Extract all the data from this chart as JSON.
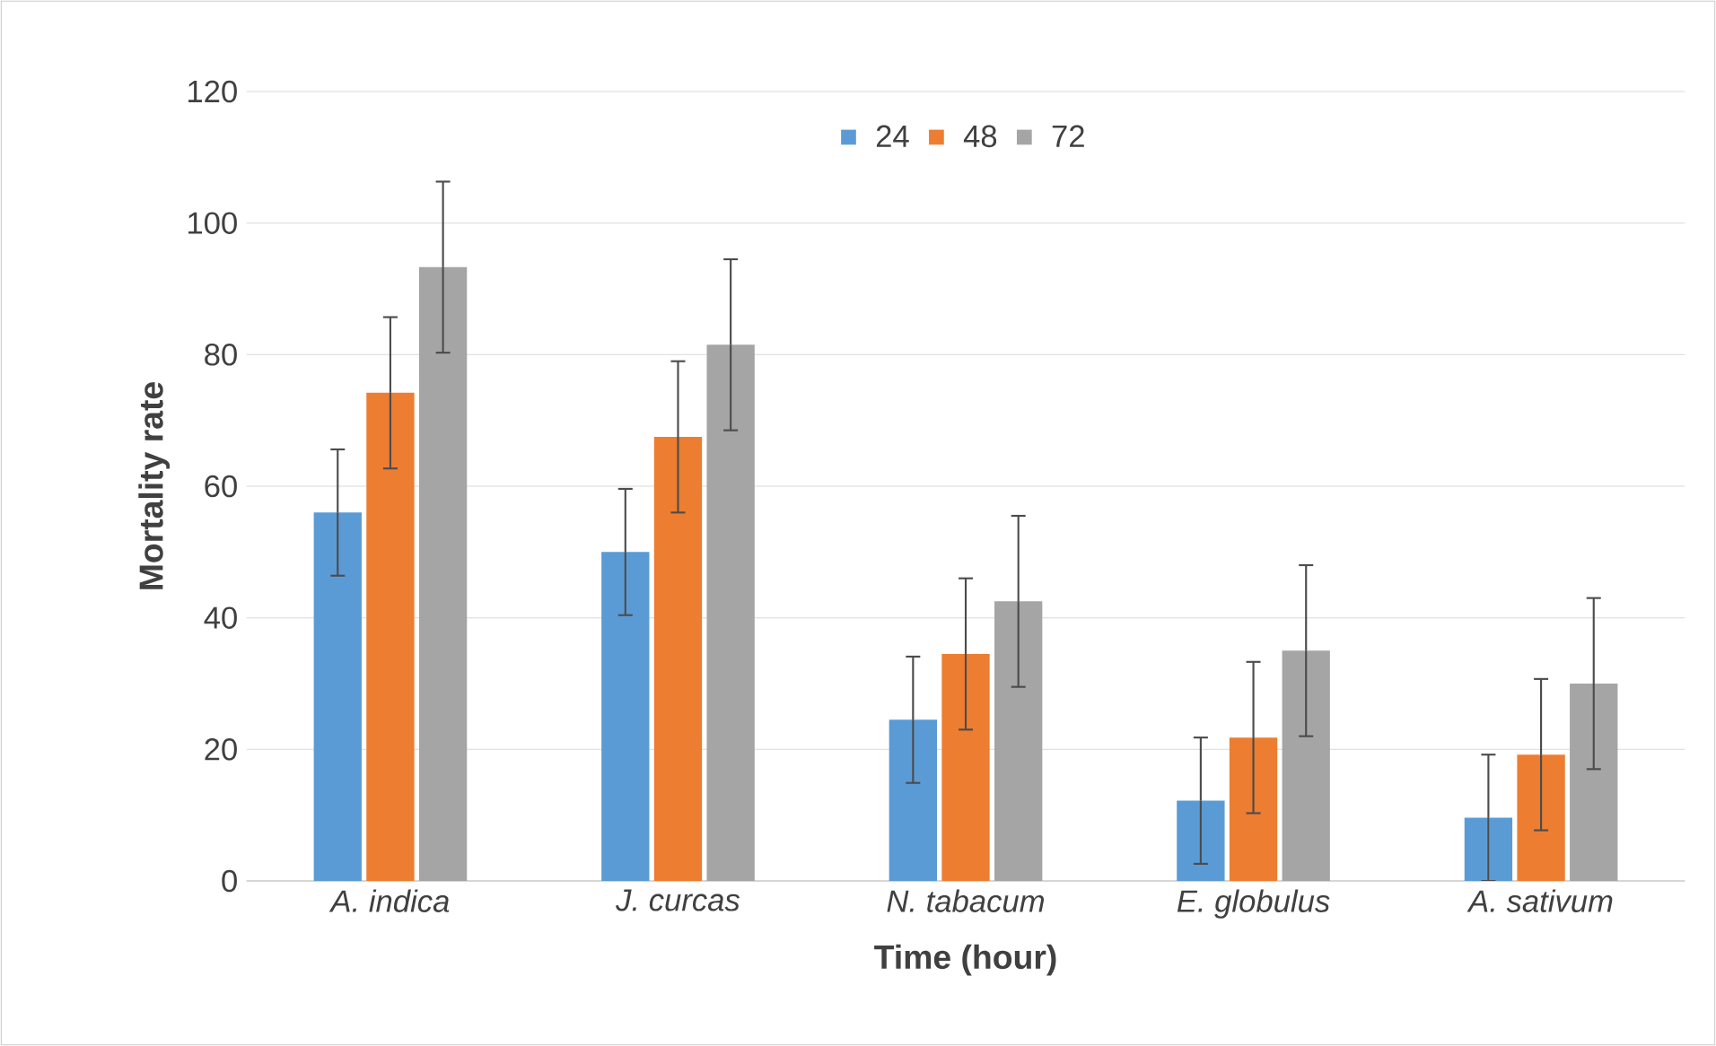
{
  "chart_data": {
    "type": "bar",
    "xlabel": "Time (hour)",
    "ylabel": "Mortality rate",
    "categories": [
      "A. indica",
      "J. curcas",
      "N. tabacum",
      "E. globulus",
      "A. sativum"
    ],
    "series": [
      {
        "name": "24",
        "color": "#5b9bd5",
        "values": [
          56,
          50,
          24.5,
          12.2,
          9.6
        ],
        "errors": [
          9.6,
          9.6,
          9.6,
          9.6,
          9.6
        ]
      },
      {
        "name": "48",
        "color": "#ed7d31",
        "values": [
          74.2,
          67.5,
          34.5,
          21.8,
          19.2
        ],
        "errors": [
          11.5,
          11.5,
          11.5,
          11.5,
          11.5
        ]
      },
      {
        "name": "72",
        "color": "#a5a5a5",
        "values": [
          93.3,
          81.5,
          42.5,
          35,
          30
        ],
        "errors": [
          13,
          13,
          13,
          13,
          13
        ]
      }
    ],
    "ylim": [
      0,
      120
    ],
    "yticks": [
      0,
      20,
      40,
      60,
      80,
      100,
      120
    ],
    "grid": "y",
    "legend": "top"
  }
}
